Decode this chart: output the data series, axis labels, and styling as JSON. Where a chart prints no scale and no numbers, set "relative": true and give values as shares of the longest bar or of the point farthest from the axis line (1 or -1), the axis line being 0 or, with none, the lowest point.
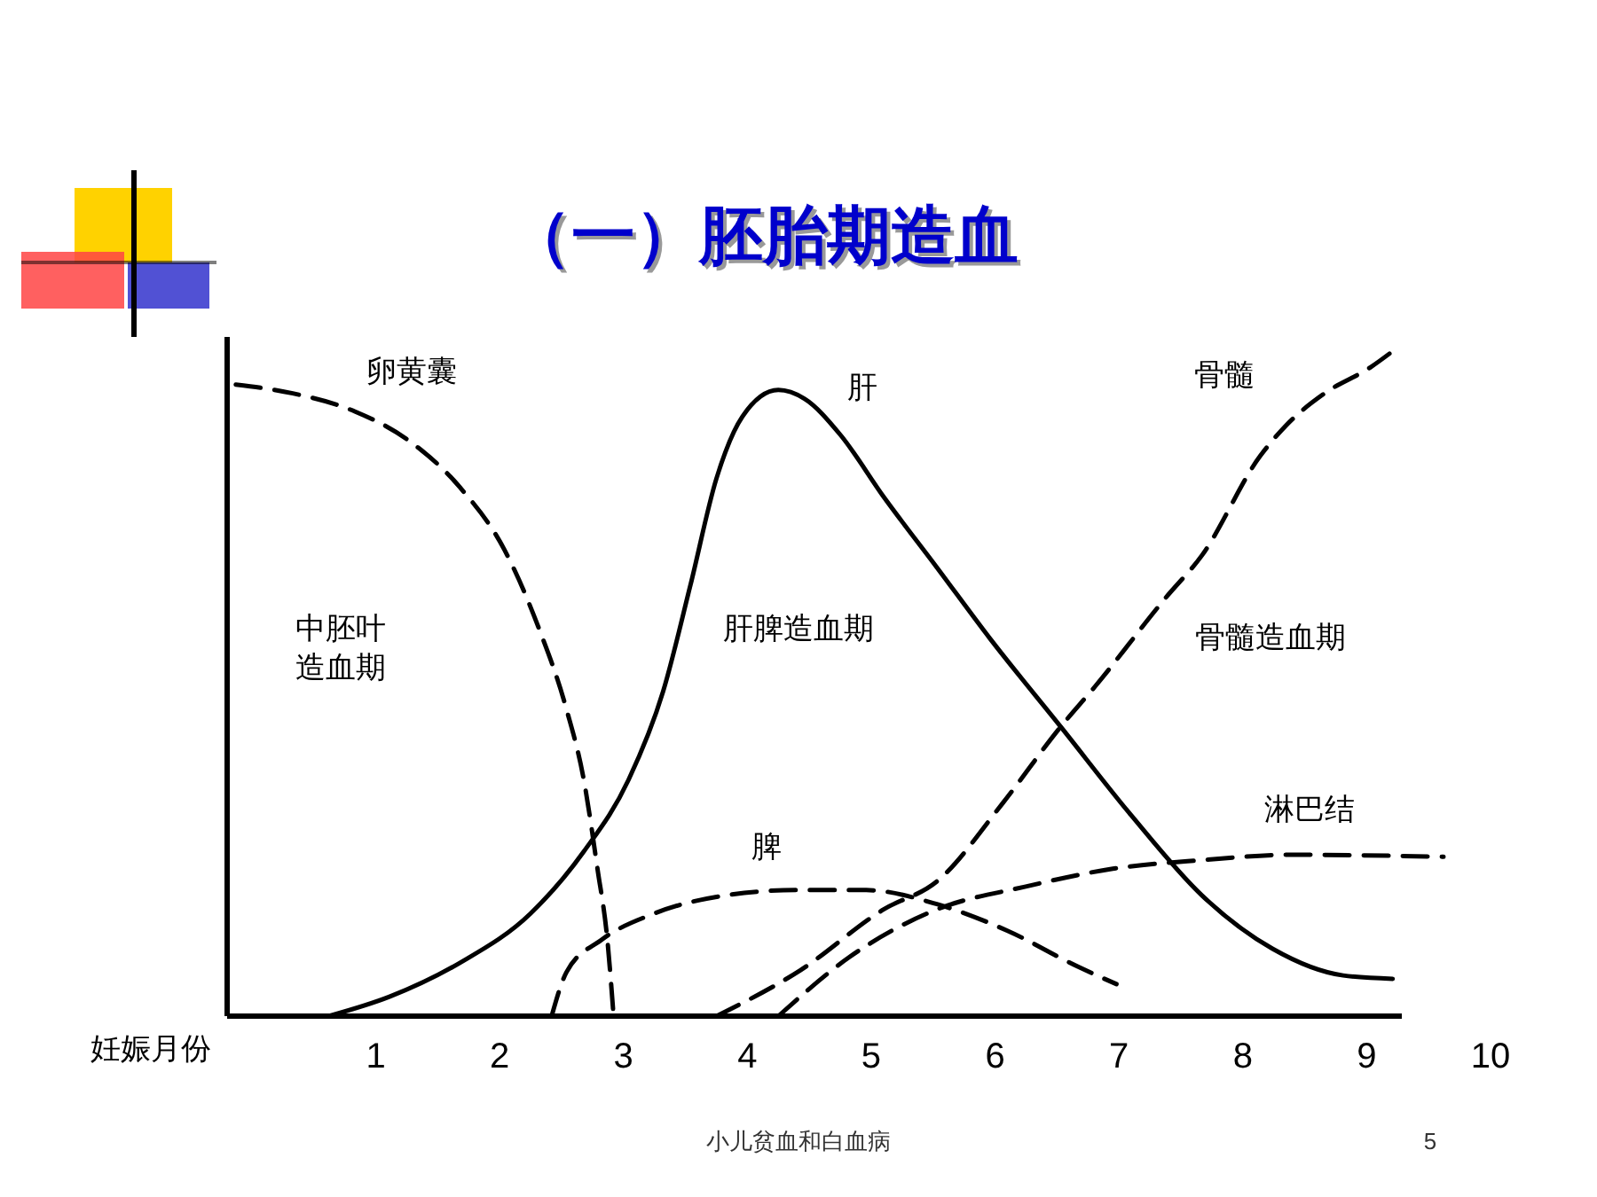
{
  "chart_data": {
    "type": "line",
    "title": "（一）胚胎期造血",
    "xlabel": "妊娠月份",
    "relative": true,
    "xlim": [
      -0.2,
      10
    ],
    "xticks": [
      1,
      2,
      3,
      4,
      5,
      6,
      7,
      8,
      9,
      10
    ],
    "grid": false,
    "series": [
      {
        "name": "卵黄囊",
        "color": "#000000",
        "line_style": "dashed",
        "x": [
          -0.13,
          0.33,
          0.83,
          1.26,
          1.68,
          2.04,
          2.32,
          2.54,
          2.68,
          2.79,
          2.87,
          2.92
        ],
        "values": [
          0.947,
          0.934,
          0.907,
          0.864,
          0.793,
          0.699,
          0.58,
          0.46,
          0.354,
          0.221,
          0.114,
          0
        ]
      },
      {
        "name": "肝",
        "color": "#000000",
        "line_style": "solid",
        "x": [
          0.62,
          1.11,
          1.68,
          2.25,
          2.68,
          3.04,
          3.32,
          3.54,
          3.75,
          3.96,
          4.25,
          4.46,
          4.75,
          5.1,
          5.53,
          5.96,
          6.53,
          7.1,
          7.67,
          8.24,
          8.81,
          9.21
        ],
        "values": [
          0,
          0.029,
          0.08,
          0.154,
          0.247,
          0.354,
          0.487,
          0.646,
          0.806,
          0.899,
          0.939,
          0.926,
          0.872,
          0.779,
          0.673,
          0.566,
          0.434,
          0.301,
          0.181,
          0.101,
          0.061,
          0.056
        ]
      },
      {
        "name": "脾",
        "color": "#000000",
        "line_style": "dashed",
        "x": [
          2.42,
          2.54,
          2.82,
          3.25,
          3.82,
          4.39,
          4.96,
          5.53,
          6.1,
          6.67,
          6.98
        ],
        "values": [
          0,
          0.066,
          0.114,
          0.154,
          0.181,
          0.189,
          0.189,
          0.168,
          0.128,
          0.074,
          0.048
        ]
      },
      {
        "name": "骨髓",
        "color": "#000000",
        "line_style": "dashed",
        "x": [
          3.75,
          4.43,
          5.1,
          5.53,
          6.06,
          6.53,
          6.81,
          7.38,
          7.67,
          8.14,
          8.35,
          8.66,
          9.03,
          9.23
        ],
        "values": [
          0,
          0.069,
          0.16,
          0.202,
          0.319,
          0.434,
          0.495,
          0.628,
          0.691,
          0.84,
          0.886,
          0.934,
          0.973,
          1
        ]
      },
      {
        "name": "淋巴结",
        "color": "#000000",
        "line_style": "dashed",
        "x": [
          4.25,
          4.82,
          5.53,
          6.24,
          6.95,
          7.67,
          8.38,
          9.62
        ],
        "values": [
          0,
          0.088,
          0.16,
          0.194,
          0.221,
          0.234,
          0.242,
          0.239
        ]
      }
    ],
    "annotations": [
      "中胚叶",
      "造血期",
      "肝脾造血期",
      "骨髓造血期",
      "小儿贫血和白血病",
      "5"
    ]
  }
}
